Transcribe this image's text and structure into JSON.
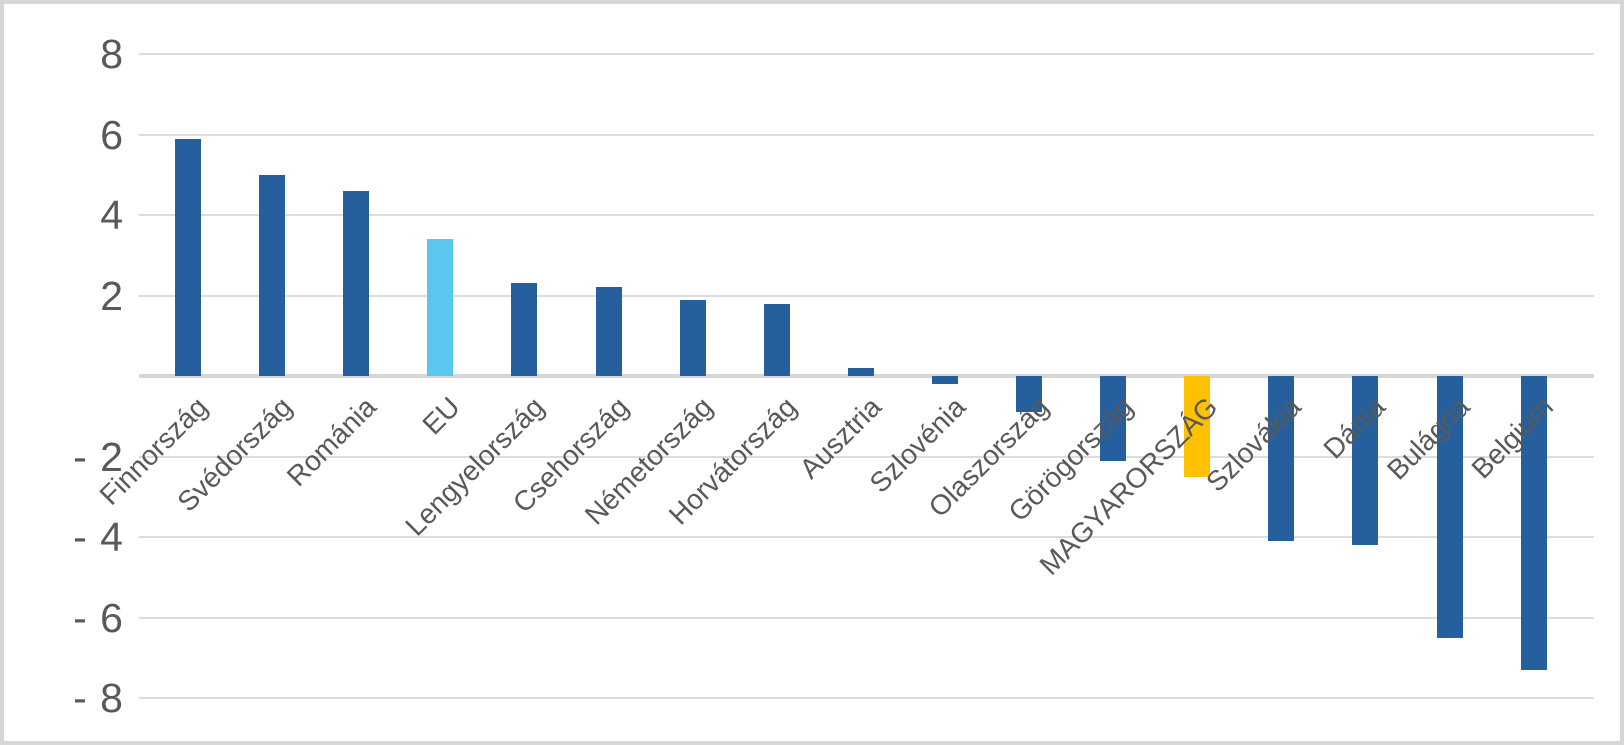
{
  "chart": {
    "background_color": "#ffffff",
    "frame_border_color": "#d7d7d7",
    "gridline_color": "#dcdcdc",
    "axis_line_color": "#d6d6d6",
    "text_color": "#595959"
  },
  "chart_data": {
    "type": "bar",
    "title": "",
    "xlabel": "",
    "ylabel": "",
    "ylim": [
      -8,
      8
    ],
    "grid": true,
    "legend": false,
    "y_ticks": {
      "values": [
        8,
        6,
        4,
        2,
        -2,
        -4,
        -6,
        -8
      ],
      "labels": [
        "8",
        "6",
        "4",
        "2",
        "- 2",
        "- 4",
        "- 6",
        "- 8"
      ]
    },
    "colors": {
      "blue": "#255F9E",
      "light_blue": "#5BC6EE",
      "orange": "#FFC000"
    },
    "points": [
      {
        "label": "Finnország",
        "value": 5.9,
        "color": "blue"
      },
      {
        "label": "Svédország",
        "value": 5.0,
        "color": "blue"
      },
      {
        "label": "Románia",
        "value": 4.6,
        "color": "blue"
      },
      {
        "label": "EU",
        "value": 3.4,
        "color": "light_blue"
      },
      {
        "label": "Lengyelország",
        "value": 2.3,
        "color": "blue"
      },
      {
        "label": "Csehország",
        "value": 2.2,
        "color": "blue"
      },
      {
        "label": "Németország",
        "value": 1.9,
        "color": "blue"
      },
      {
        "label": "Horvátország",
        "value": 1.8,
        "color": "blue"
      },
      {
        "label": "Ausztria",
        "value": 0.2,
        "color": "blue"
      },
      {
        "label": "Szlovénia",
        "value": -0.2,
        "color": "blue"
      },
      {
        "label": "Olaszország",
        "value": -0.9,
        "color": "blue"
      },
      {
        "label": "Görögország",
        "value": -2.1,
        "color": "blue"
      },
      {
        "label": "MAGYARORSZÁG",
        "value": -2.5,
        "color": "orange"
      },
      {
        "label": "Szlovákia",
        "value": -4.1,
        "color": "blue"
      },
      {
        "label": "Dánia",
        "value": -4.2,
        "color": "blue"
      },
      {
        "label": "Bulágria",
        "value": -6.5,
        "color": "blue"
      },
      {
        "label": "Belgium",
        "value": -7.3,
        "color": "blue"
      }
    ]
  }
}
